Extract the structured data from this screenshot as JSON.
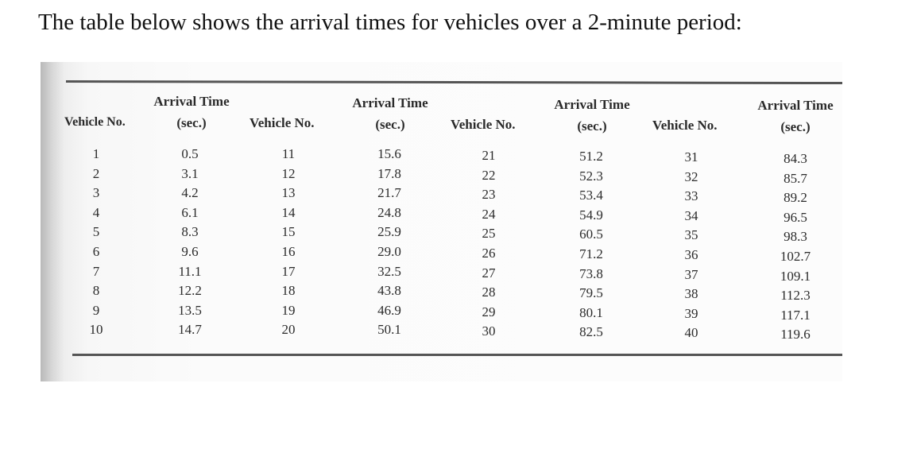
{
  "intro_text": "The table below shows the arrival times for vehicles over a 2-minute period:",
  "headers": {
    "vehicle": "Vehicle No.",
    "arrival_line1": "Arrival Time",
    "arrival_line2": "(sec.)"
  },
  "table": {
    "groups": [
      {
        "vehicles": [
          "1",
          "2",
          "3",
          "4",
          "5",
          "6",
          "7",
          "8",
          "9",
          "10"
        ],
        "times": [
          "0.5",
          "3.1",
          "4.2",
          "6.1",
          "8.3",
          "9.6",
          "11.1",
          "12.2",
          "13.5",
          "14.7"
        ]
      },
      {
        "vehicles": [
          "11",
          "12",
          "13",
          "14",
          "15",
          "16",
          "17",
          "18",
          "19",
          "20"
        ],
        "times": [
          "15.6",
          "17.8",
          "21.7",
          "24.8",
          "25.9",
          "29.0",
          "32.5",
          "43.8",
          "46.9",
          "50.1"
        ]
      },
      {
        "vehicles": [
          "21",
          "22",
          "23",
          "24",
          "25",
          "26",
          "27",
          "28",
          "29",
          "30"
        ],
        "times": [
          "51.2",
          "52.3",
          "53.4",
          "54.9",
          "60.5",
          "71.2",
          "73.8",
          "79.5",
          "80.1",
          "82.5"
        ]
      },
      {
        "vehicles": [
          "31",
          "32",
          "33",
          "34",
          "35",
          "36",
          "37",
          "38",
          "39",
          "40"
        ],
        "times": [
          "84.3",
          "85.7",
          "89.2",
          "96.5",
          "98.3",
          "102.7",
          "109.1",
          "112.3",
          "117.1",
          "119.6"
        ]
      }
    ]
  }
}
